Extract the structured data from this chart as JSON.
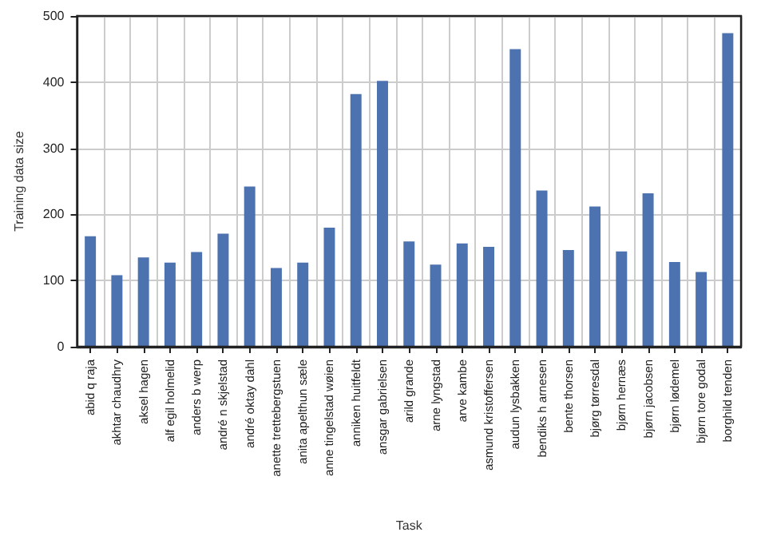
{
  "chart_data": {
    "type": "bar",
    "xlabel": "Task",
    "ylabel": "Training data size",
    "categories": [
      "abid q raja",
      "akhtar chaudhry",
      "aksel hagen",
      "alf egil holmelid",
      "anders b werp",
      "andré n skjelstad",
      "andré oktay dahl",
      "anette trettebergstuen",
      "anita apelthun sæle",
      "anne tingelstad wøien",
      "anniken huitfeldt",
      "ansgar gabrielsen",
      "arild grande",
      "arne lyngstad",
      "arve kambe",
      "asmund kristoffersen",
      "audun lysbakken",
      "bendiks h arnesen",
      "bente thorsen",
      "bjørg tørresdal",
      "bjørn hernæs",
      "bjørn jacobsen",
      "bjørn lødemel",
      "bjørn tore godal",
      "borghild tenden"
    ],
    "values": [
      167,
      108,
      135,
      127,
      143,
      171,
      242,
      119,
      127,
      180,
      382,
      402,
      159,
      124,
      156,
      151,
      450,
      236,
      146,
      212,
      144,
      232,
      128,
      113,
      474
    ],
    "color": "#4c72b0",
    "ylim": [
      0,
      500
    ],
    "yticks": [
      0,
      100,
      200,
      300,
      400,
      500
    ],
    "grid": true
  }
}
